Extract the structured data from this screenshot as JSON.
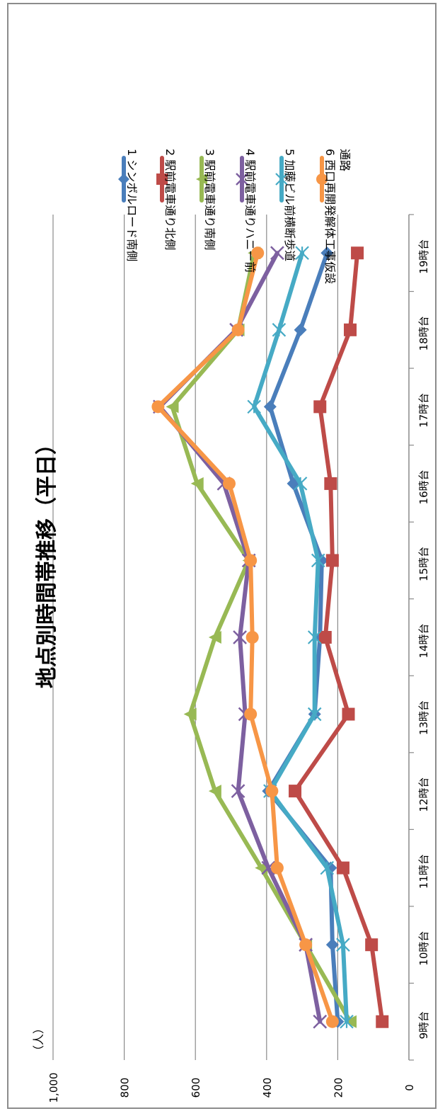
{
  "chart_data": {
    "type": "line",
    "title": "地点別時間帯推移（平日）",
    "ylabel": "（人）",
    "xlabel": "",
    "categories": [
      "9時台",
      "10時台",
      "11時台",
      "12時台",
      "13時台",
      "14時台",
      "15時台",
      "16時台",
      "17時台",
      "18時台",
      "19時台"
    ],
    "ylim": [
      0,
      1000
    ],
    "yticks": [
      0,
      200,
      400,
      600,
      800,
      1000
    ],
    "ytick_labels": [
      "0",
      "200",
      "400",
      "600",
      "800",
      "1,000"
    ],
    "grid": true,
    "legend_position": "right",
    "orientation": "rotated-90-clockwise",
    "series": [
      {
        "name": "1 シンボルロード南側",
        "color": "#4a7ebb",
        "marker": "diamond",
        "values": [
          200,
          215,
          220,
          395,
          265,
          250,
          245,
          325,
          390,
          305,
          230
        ]
      },
      {
        "name": "2 駅前電車通り北側",
        "color": "#be4b48",
        "marker": "square",
        "values": [
          75,
          105,
          185,
          320,
          170,
          235,
          215,
          220,
          250,
          165,
          145
        ]
      },
      {
        "name": "3 駅前電車通り南側",
        "color": "#98b954",
        "marker": "triangle",
        "values": [
          165,
          290,
          415,
          545,
          615,
          545,
          450,
          595,
          665,
          480,
          435
        ]
      },
      {
        "name": "4 駅前電車通りハニー前",
        "color": "#7d60a0",
        "marker": "x",
        "values": [
          250,
          290,
          395,
          480,
          460,
          475,
          450,
          520,
          700,
          485,
          370
        ]
      },
      {
        "name": "5 加藤ビル前横断歩道",
        "color": "#46aac5",
        "marker": "asterisk",
        "values": [
          175,
          185,
          230,
          390,
          265,
          265,
          255,
          305,
          435,
          365,
          300
        ]
      },
      {
        "name": "6 西口再開発解体工事仮設通路",
        "color": "#f79646",
        "marker": "circle",
        "values": [
          215,
          290,
          370,
          385,
          445,
          440,
          445,
          505,
          705,
          480,
          425
        ]
      }
    ]
  }
}
